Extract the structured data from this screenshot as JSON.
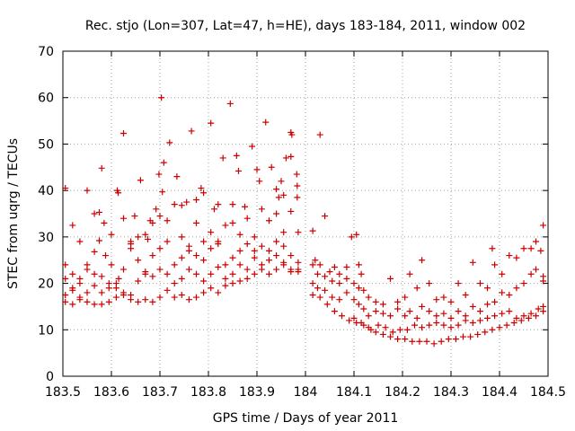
{
  "chart_data": {
    "type": "scatter",
    "title": "Rec. stjo (Lon=307, Lat=47, h=HE), days 183-184, 2011, window 002",
    "xlabel": "GPS time / Days of year 2011",
    "ylabel": "STEC from uqrg / TECUs",
    "xlim": [
      183.5,
      184.5
    ],
    "ylim": [
      0,
      70
    ],
    "xticks": [
      183.5,
      183.6,
      183.7,
      183.8,
      183.9,
      184,
      184.1,
      184.2,
      184.3,
      184.4,
      184.5
    ],
    "xtick_labels": [
      "183.5",
      "183.6",
      "183.7",
      "183.8",
      "183.9",
      "184",
      "184.1",
      "184.2",
      "184.3",
      "184.4",
      "184.5"
    ],
    "yticks": [
      0,
      10,
      20,
      30,
      40,
      50,
      60,
      70
    ],
    "ytick_labels": [
      "0",
      "10",
      "20",
      "30",
      "40",
      "50",
      "60",
      "70"
    ],
    "grid": true,
    "marker": "+",
    "marker_color": "#cc0000",
    "points": [
      [
        183.505,
        40.5
      ],
      [
        183.52,
        32.5
      ],
      [
        183.535,
        29
      ],
      [
        183.55,
        40
      ],
      [
        183.565,
        35
      ],
      [
        183.575,
        35.3
      ],
      [
        183.585,
        33
      ],
      [
        183.58,
        44.8
      ],
      [
        183.6,
        30.5
      ],
      [
        183.612,
        40
      ],
      [
        183.614,
        39.5
      ],
      [
        183.625,
        52.3
      ],
      [
        183.64,
        29
      ],
      [
        183.648,
        34.5
      ],
      [
        183.66,
        42.2
      ],
      [
        183.675,
        29.5
      ],
      [
        183.68,
        33.5
      ],
      [
        183.692,
        36
      ],
      [
        183.698,
        43.5
      ],
      [
        183.703,
        60
      ],
      [
        183.705,
        39.7
      ],
      [
        183.708,
        46
      ],
      [
        183.72,
        50.3
      ],
      [
        183.735,
        43
      ],
      [
        183.745,
        36.8
      ],
      [
        183.755,
        37.5
      ],
      [
        183.765,
        52.8
      ],
      [
        183.775,
        38
      ],
      [
        183.785,
        40.5
      ],
      [
        183.79,
        39.5
      ],
      [
        183.805,
        54.5
      ],
      [
        183.812,
        36
      ],
      [
        183.82,
        37
      ],
      [
        183.83,
        47
      ],
      [
        183.845,
        58.7
      ],
      [
        183.85,
        37
      ],
      [
        183.858,
        47.5
      ],
      [
        183.862,
        44.2
      ],
      [
        183.875,
        36.5
      ],
      [
        183.89,
        49.5
      ],
      [
        183.9,
        44.5
      ],
      [
        183.905,
        42
      ],
      [
        183.918,
        54.7
      ],
      [
        183.93,
        45
      ],
      [
        183.94,
        40.3
      ],
      [
        183.95,
        42
      ],
      [
        183.96,
        47
      ],
      [
        183.97,
        52.5
      ],
      [
        183.972,
        52
      ],
      [
        183.982,
        43.5
      ],
      [
        183.983,
        41
      ],
      [
        183.983,
        38.5
      ],
      [
        184.03,
        52
      ],
      [
        184.04,
        34.5
      ],
      [
        183.97,
        47.3
      ],
      [
        183.955,
        39
      ],
      [
        183.945,
        38.5
      ],
      [
        183.505,
        24
      ],
      [
        183.52,
        22
      ],
      [
        183.535,
        21
      ],
      [
        183.55,
        24
      ],
      [
        183.565,
        26.8
      ],
      [
        183.575,
        29.2
      ],
      [
        183.588,
        26
      ],
      [
        183.6,
        24
      ],
      [
        183.615,
        21
      ],
      [
        183.625,
        34
      ],
      [
        183.64,
        28.5
      ],
      [
        183.655,
        30
      ],
      [
        183.67,
        30.5
      ],
      [
        183.685,
        33
      ],
      [
        183.7,
        34.5
      ],
      [
        183.715,
        33.5
      ],
      [
        183.73,
        37
      ],
      [
        183.745,
        30
      ],
      [
        183.76,
        28
      ],
      [
        183.775,
        33
      ],
      [
        183.79,
        29
      ],
      [
        183.805,
        31
      ],
      [
        183.82,
        28.5
      ],
      [
        183.835,
        32.5
      ],
      [
        183.85,
        33
      ],
      [
        183.865,
        30.5
      ],
      [
        183.88,
        34
      ],
      [
        183.895,
        30
      ],
      [
        183.91,
        36
      ],
      [
        183.925,
        33.5
      ],
      [
        183.94,
        35
      ],
      [
        183.955,
        31
      ],
      [
        183.97,
        35.5
      ],
      [
        183.985,
        31
      ],
      [
        183.505,
        21
      ],
      [
        183.52,
        19
      ],
      [
        183.535,
        20
      ],
      [
        183.55,
        23
      ],
      [
        183.565,
        22
      ],
      [
        183.58,
        21.5
      ],
      [
        183.595,
        20
      ],
      [
        183.61,
        19
      ],
      [
        183.625,
        23
      ],
      [
        183.64,
        27.5
      ],
      [
        183.655,
        25
      ],
      [
        183.67,
        22.5
      ],
      [
        183.685,
        26
      ],
      [
        183.7,
        27.5
      ],
      [
        183.715,
        29
      ],
      [
        183.73,
        24
      ],
      [
        183.745,
        25.5
      ],
      [
        183.76,
        27
      ],
      [
        183.775,
        26
      ],
      [
        183.79,
        25
      ],
      [
        183.805,
        27.5
      ],
      [
        183.82,
        29
      ],
      [
        183.835,
        24
      ],
      [
        183.85,
        25.5
      ],
      [
        183.865,
        27
      ],
      [
        183.88,
        28.5
      ],
      [
        183.895,
        27
      ],
      [
        183.91,
        28
      ],
      [
        183.925,
        27
      ],
      [
        183.94,
        29
      ],
      [
        183.955,
        28
      ],
      [
        183.97,
        26
      ],
      [
        183.985,
        24.5
      ],
      [
        183.505,
        17.5
      ],
      [
        183.52,
        18.5
      ],
      [
        183.535,
        16.5
      ],
      [
        183.55,
        18
      ],
      [
        183.565,
        19.5
      ],
      [
        183.58,
        18
      ],
      [
        183.595,
        19
      ],
      [
        183.61,
        20
      ],
      [
        183.625,
        18
      ],
      [
        183.64,
        17.5
      ],
      [
        183.655,
        20.5
      ],
      [
        183.67,
        22
      ],
      [
        183.685,
        21.5
      ],
      [
        183.7,
        23
      ],
      [
        183.715,
        22
      ],
      [
        183.73,
        20
      ],
      [
        183.745,
        21
      ],
      [
        183.76,
        23
      ],
      [
        183.775,
        22
      ],
      [
        183.79,
        20.5
      ],
      [
        183.805,
        22
      ],
      [
        183.82,
        23.5
      ],
      [
        183.835,
        21
      ],
      [
        183.85,
        22
      ],
      [
        183.865,
        24
      ],
      [
        183.88,
        23
      ],
      [
        183.895,
        25.5
      ],
      [
        183.91,
        24
      ],
      [
        183.925,
        25
      ],
      [
        183.94,
        26
      ],
      [
        183.955,
        24.5
      ],
      [
        183.97,
        23
      ],
      [
        183.985,
        22.5
      ],
      [
        183.505,
        16
      ],
      [
        183.52,
        15.5
      ],
      [
        183.535,
        17
      ],
      [
        183.55,
        16
      ],
      [
        183.565,
        15.5
      ],
      [
        183.58,
        15.5
      ],
      [
        183.595,
        16
      ],
      [
        183.61,
        17
      ],
      [
        183.625,
        17.5
      ],
      [
        183.64,
        16.5
      ],
      [
        183.655,
        16
      ],
      [
        183.67,
        16.5
      ],
      [
        183.685,
        16
      ],
      [
        183.7,
        17
      ],
      [
        183.715,
        18.5
      ],
      [
        183.73,
        17
      ],
      [
        183.745,
        17.5
      ],
      [
        183.76,
        16.5
      ],
      [
        183.775,
        17
      ],
      [
        183.79,
        18
      ],
      [
        183.805,
        19
      ],
      [
        183.82,
        18
      ],
      [
        183.835,
        19.5
      ],
      [
        183.85,
        20
      ],
      [
        183.865,
        20.5
      ],
      [
        183.88,
        21
      ],
      [
        183.895,
        22
      ],
      [
        183.91,
        23
      ],
      [
        183.925,
        22
      ],
      [
        183.94,
        23
      ],
      [
        183.955,
        24
      ],
      [
        183.97,
        22.5
      ],
      [
        183.985,
        23
      ],
      [
        184.015,
        31.3
      ],
      [
        184.02,
        25
      ],
      [
        184.03,
        24
      ],
      [
        184.05,
        22.5
      ],
      [
        184.06,
        23.5
      ],
      [
        184.07,
        22
      ],
      [
        184.085,
        23.5
      ],
      [
        184.095,
        30
      ],
      [
        184.105,
        30.5
      ],
      [
        184.11,
        24
      ],
      [
        184.115,
        22
      ],
      [
        184.015,
        24
      ],
      [
        184.025,
        22
      ],
      [
        184.04,
        21.5
      ],
      [
        184.055,
        20.5
      ],
      [
        184.07,
        20
      ],
      [
        184.085,
        21
      ],
      [
        184.1,
        20
      ],
      [
        184.11,
        19
      ],
      [
        184.12,
        18.5
      ],
      [
        184.13,
        17
      ],
      [
        184.145,
        16
      ],
      [
        184.16,
        15.5
      ],
      [
        184.175,
        21
      ],
      [
        184.19,
        16
      ],
      [
        184.205,
        17
      ],
      [
        184.215,
        22
      ],
      [
        184.23,
        19
      ],
      [
        184.24,
        25
      ],
      [
        184.255,
        20
      ],
      [
        184.27,
        16.5
      ],
      [
        184.285,
        17
      ],
      [
        184.3,
        16
      ],
      [
        184.315,
        20
      ],
      [
        184.33,
        17.5
      ],
      [
        184.345,
        24.5
      ],
      [
        184.36,
        20
      ],
      [
        184.375,
        19
      ],
      [
        184.385,
        27.5
      ],
      [
        184.39,
        24
      ],
      [
        184.405,
        22
      ],
      [
        184.42,
        26
      ],
      [
        184.435,
        25.5
      ],
      [
        184.45,
        27.5
      ],
      [
        184.465,
        27.5
      ],
      [
        184.475,
        29
      ],
      [
        184.49,
        32.5
      ],
      [
        184.485,
        27
      ],
      [
        184.49,
        20.5
      ],
      [
        184.015,
        20
      ],
      [
        184.025,
        19
      ],
      [
        184.04,
        18.5
      ],
      [
        184.055,
        17
      ],
      [
        184.07,
        16.5
      ],
      [
        184.085,
        18
      ],
      [
        184.1,
        16.5
      ],
      [
        184.11,
        15.5
      ],
      [
        184.12,
        14.5
      ],
      [
        184.13,
        13
      ],
      [
        184.145,
        14
      ],
      [
        184.16,
        13.5
      ],
      [
        184.175,
        13
      ],
      [
        184.19,
        14.5
      ],
      [
        184.205,
        13
      ],
      [
        184.215,
        14
      ],
      [
        184.23,
        12.5
      ],
      [
        184.24,
        15
      ],
      [
        184.255,
        14
      ],
      [
        184.27,
        13
      ],
      [
        184.285,
        13.5
      ],
      [
        184.3,
        12.5
      ],
      [
        184.315,
        14
      ],
      [
        184.33,
        13
      ],
      [
        184.345,
        15
      ],
      [
        184.36,
        14
      ],
      [
        184.375,
        15.5
      ],
      [
        184.39,
        16
      ],
      [
        184.405,
        18
      ],
      [
        184.42,
        17.5
      ],
      [
        184.435,
        19
      ],
      [
        184.45,
        20
      ],
      [
        184.465,
        22
      ],
      [
        184.475,
        23
      ],
      [
        184.49,
        21.5
      ],
      [
        184.015,
        17.5
      ],
      [
        184.03,
        17
      ],
      [
        184.045,
        15.5
      ],
      [
        184.06,
        14
      ],
      [
        184.075,
        13
      ],
      [
        184.09,
        12
      ],
      [
        184.105,
        11.5
      ],
      [
        184.12,
        11
      ],
      [
        184.135,
        10
      ],
      [
        184.15,
        11
      ],
      [
        184.165,
        10.5
      ],
      [
        184.18,
        9.5
      ],
      [
        184.195,
        10
      ],
      [
        184.21,
        10
      ],
      [
        184.225,
        11
      ],
      [
        184.24,
        10.5
      ],
      [
        184.255,
        11
      ],
      [
        184.27,
        11.5
      ],
      [
        184.285,
        11
      ],
      [
        184.3,
        10.5
      ],
      [
        184.315,
        11
      ],
      [
        184.33,
        12
      ],
      [
        184.345,
        11.5
      ],
      [
        184.36,
        12
      ],
      [
        184.375,
        12.5
      ],
      [
        184.39,
        13
      ],
      [
        184.405,
        13.5
      ],
      [
        184.42,
        14
      ],
      [
        184.435,
        12.5
      ],
      [
        184.45,
        13
      ],
      [
        184.465,
        13.5
      ],
      [
        184.48,
        14.5
      ],
      [
        184.49,
        15
      ],
      [
        184.1,
        12.5
      ],
      [
        184.115,
        11.5
      ],
      [
        184.13,
        10.5
      ],
      [
        184.145,
        9.5
      ],
      [
        184.16,
        9
      ],
      [
        184.175,
        8.5
      ],
      [
        184.19,
        8
      ],
      [
        184.205,
        8
      ],
      [
        184.22,
        7.5
      ],
      [
        184.235,
        7.5
      ],
      [
        184.25,
        7.5
      ],
      [
        184.265,
        7
      ],
      [
        184.28,
        7.5
      ],
      [
        184.295,
        8
      ],
      [
        184.31,
        8
      ],
      [
        184.325,
        8.5
      ],
      [
        184.34,
        8.5
      ],
      [
        184.355,
        9
      ],
      [
        184.37,
        9.5
      ],
      [
        184.385,
        10
      ],
      [
        184.4,
        10.5
      ],
      [
        184.415,
        11
      ],
      [
        184.43,
        11.5
      ],
      [
        184.445,
        12
      ],
      [
        184.46,
        12.5
      ],
      [
        184.475,
        13
      ],
      [
        184.49,
        14
      ]
    ]
  }
}
